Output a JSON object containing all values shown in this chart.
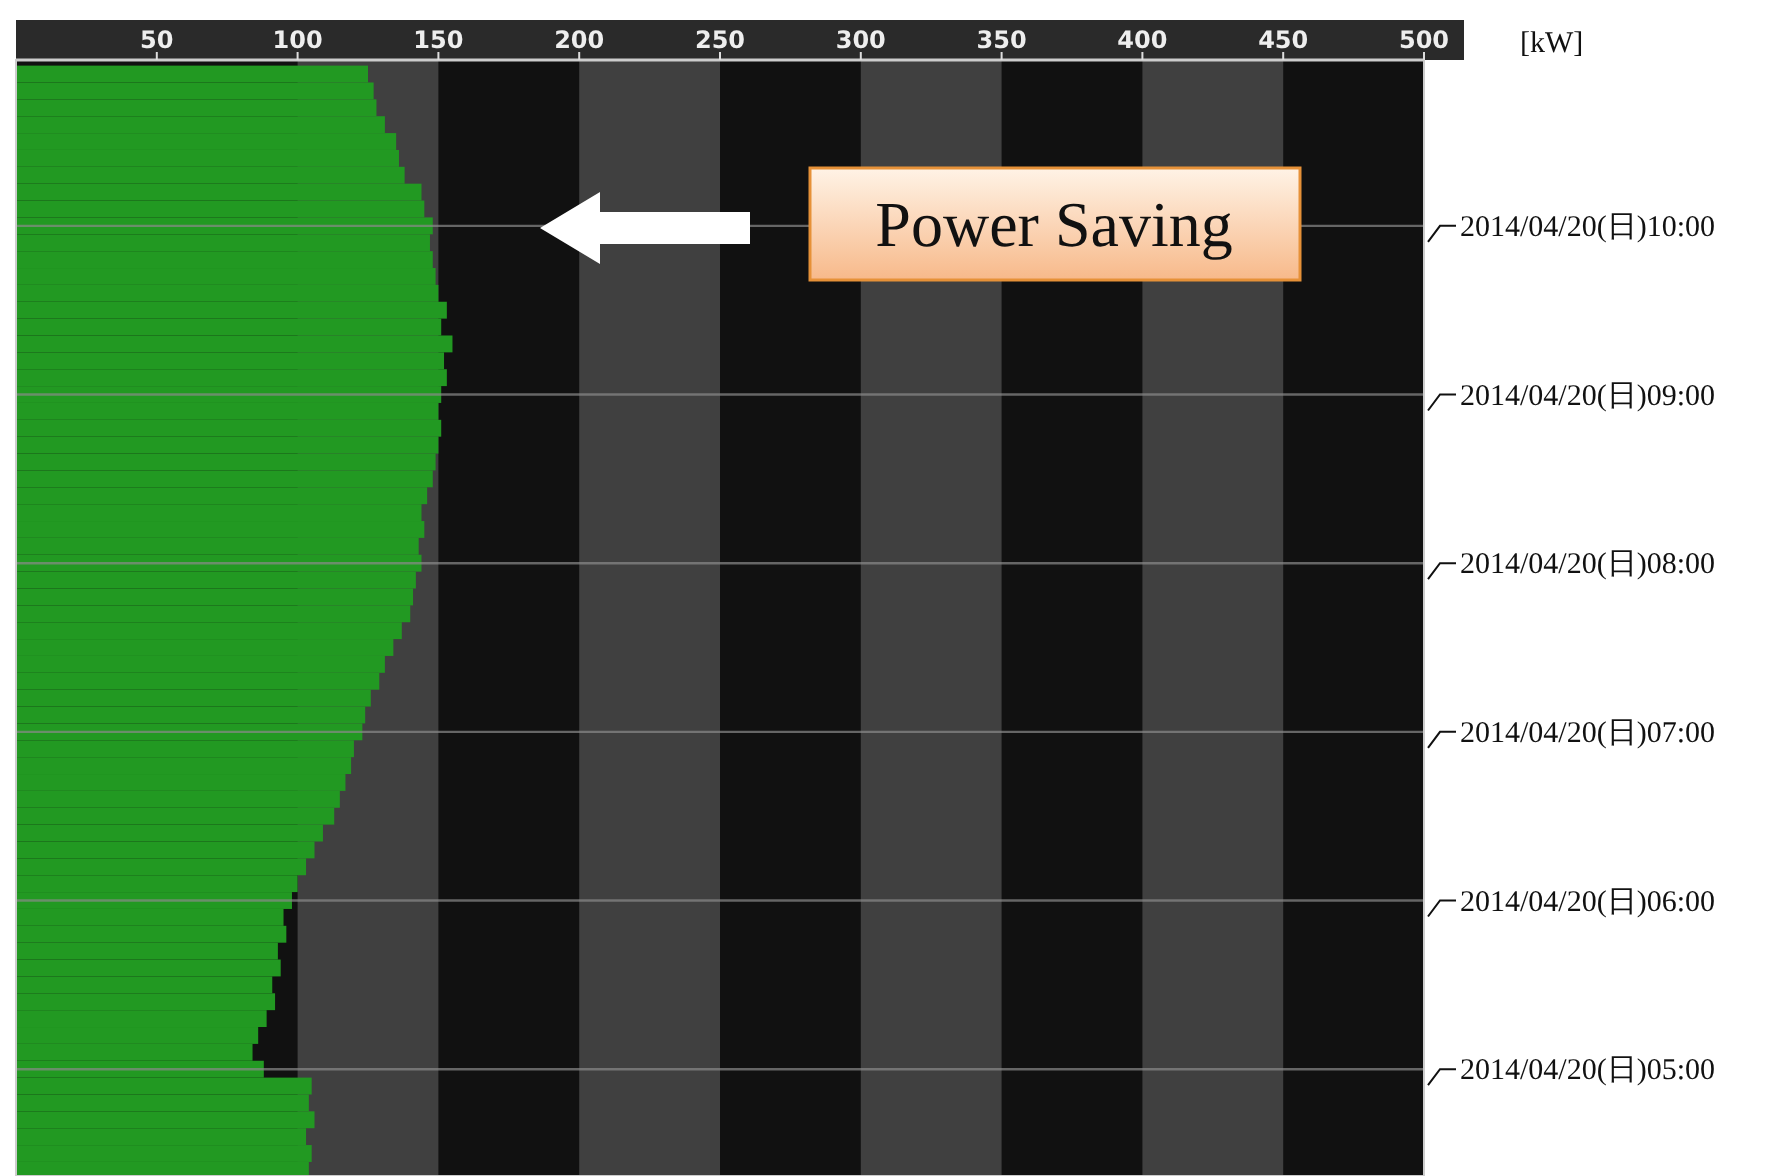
{
  "chart_data": {
    "type": "bar",
    "orientation": "horizontal",
    "xlabel": "[kW]",
    "x": [
      "2014-04-20T04:24",
      "2014-04-20T04:30",
      "2014-04-20T04:36",
      "2014-04-20T04:42",
      "2014-04-20T04:48",
      "2014-04-20T04:54",
      "2014-04-20T05:00",
      "2014-04-20T05:06",
      "2014-04-20T05:12",
      "2014-04-20T05:18",
      "2014-04-20T05:24",
      "2014-04-20T05:30",
      "2014-04-20T05:36",
      "2014-04-20T05:42",
      "2014-04-20T05:48",
      "2014-04-20T05:54",
      "2014-04-20T06:00",
      "2014-04-20T06:06",
      "2014-04-20T06:12",
      "2014-04-20T06:18",
      "2014-04-20T06:24",
      "2014-04-20T06:30",
      "2014-04-20T06:36",
      "2014-04-20T06:42",
      "2014-04-20T06:48",
      "2014-04-20T06:54",
      "2014-04-20T07:00",
      "2014-04-20T07:06",
      "2014-04-20T07:12",
      "2014-04-20T07:18",
      "2014-04-20T07:24",
      "2014-04-20T07:30",
      "2014-04-20T07:36",
      "2014-04-20T07:42",
      "2014-04-20T07:48",
      "2014-04-20T07:54",
      "2014-04-20T08:00",
      "2014-04-20T08:06",
      "2014-04-20T08:12",
      "2014-04-20T08:18",
      "2014-04-20T08:24",
      "2014-04-20T08:30",
      "2014-04-20T08:36",
      "2014-04-20T08:42",
      "2014-04-20T08:48",
      "2014-04-20T08:54",
      "2014-04-20T09:00",
      "2014-04-20T09:06",
      "2014-04-20T09:12",
      "2014-04-20T09:18",
      "2014-04-20T09:24",
      "2014-04-20T09:30",
      "2014-04-20T09:36",
      "2014-04-20T09:42",
      "2014-04-20T09:48",
      "2014-04-20T09:54",
      "2014-04-20T10:00",
      "2014-04-20T10:06",
      "2014-04-20T10:12",
      "2014-04-20T10:18",
      "2014-04-20T10:24",
      "2014-04-20T10:30",
      "2014-04-20T10:36",
      "2014-04-20T10:42",
      "2014-04-20T10:48",
      "2014-04-20T10:54"
    ],
    "values": [
      104,
      105,
      103,
      106,
      104,
      105,
      88,
      84,
      86,
      89,
      92,
      91,
      94,
      93,
      96,
      95,
      98,
      100,
      103,
      106,
      109,
      113,
      115,
      117,
      119,
      120,
      123,
      124,
      126,
      129,
      131,
      134,
      137,
      140,
      141,
      142,
      144,
      143,
      145,
      144,
      146,
      148,
      149,
      150,
      151,
      150,
      151,
      153,
      152,
      155,
      151,
      153,
      150,
      149,
      148,
      147,
      148,
      145,
      144,
      138,
      136,
      135,
      131,
      128,
      127,
      125
    ],
    "color": "#229922",
    "xlim": [
      0,
      500
    ],
    "xticks": [
      50,
      100,
      150,
      200,
      250,
      300,
      350,
      400,
      450,
      500
    ],
    "ylim": [
      "2014-04-20T04:22",
      "2014-04-20T10:59"
    ],
    "yticks": [
      {
        "value": "2014-04-20T05:00",
        "label": "2014/04/20(日)05:00"
      },
      {
        "value": "2014-04-20T06:00",
        "label": "2014/04/20(日)06:00"
      },
      {
        "value": "2014-04-20T07:00",
        "label": "2014/04/20(日)07:00"
      },
      {
        "value": "2014-04-20T08:00",
        "label": "2014/04/20(日)08:00"
      },
      {
        "value": "2014-04-20T09:00",
        "label": "2014/04/20(日)09:00"
      },
      {
        "value": "2014-04-20T10:00",
        "label": "2014/04/20(日)10:00"
      }
    ],
    "grid": "y",
    "bands": [
      {
        "axis": "x",
        "from": 100,
        "to": 150,
        "color": "#404040"
      },
      {
        "axis": "x",
        "from": 200,
        "to": 250,
        "color": "#404040"
      },
      {
        "axis": "x",
        "from": 300,
        "to": 350,
        "color": "#404040"
      },
      {
        "axis": "x",
        "from": 400,
        "to": 450,
        "color": "#404040"
      }
    ],
    "annotations": [
      "Power Saving"
    ]
  }
}
